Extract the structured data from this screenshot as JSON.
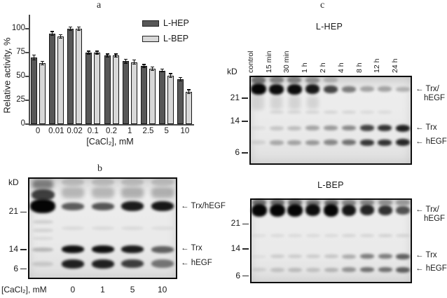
{
  "figure": {
    "panel_a_label": "a",
    "panel_b_label": "b",
    "panel_c_label": "c"
  },
  "chart_data": {
    "type": "bar",
    "title": "",
    "categories": [
      "0",
      "0.01",
      "0.02",
      "0.1",
      "0.2",
      "1",
      "2.5",
      "5",
      "10"
    ],
    "series": [
      {
        "name": "L-HEP",
        "color": "#575757",
        "values": [
          70,
          95,
          100,
          75,
          72,
          66,
          61,
          56,
          47
        ],
        "errors": [
          2.5,
          2,
          2,
          1.5,
          1.5,
          2,
          1.5,
          1.5,
          2
        ]
      },
      {
        "name": "L-BEP",
        "color": "#d8d8d8",
        "values": [
          64,
          92,
          100,
          75,
          72,
          65,
          58,
          51,
          34
        ],
        "errors": [
          2,
          2,
          2,
          1.5,
          1.5,
          2,
          2,
          2,
          2
        ]
      }
    ],
    "xlabel": "[CaCl₂], mM",
    "ylabel": "Relative activity, %",
    "yticks": [
      0,
      25,
      50,
      75,
      100
    ],
    "ylim": [
      0,
      112
    ],
    "grid": false,
    "legend_position": "top-right"
  },
  "gel_b": {
    "kd_label": "kD",
    "bottom_label": "[CaCl₂], mM",
    "lane_labels": [
      "",
      "0",
      "1",
      "5",
      "10"
    ],
    "markers": [
      {
        "text": "21",
        "f": 0.34
      },
      {
        "text": "14",
        "f": 0.71
      },
      {
        "text": "6",
        "f": 0.9
      }
    ],
    "arrows": [
      {
        "label": "Trx/hEGF",
        "f": 0.29
      },
      {
        "label": "Trx",
        "f": 0.705
      },
      {
        "label": "hEGF",
        "f": 0.85
      }
    ],
    "lanes": [
      [
        [
          0.28,
          1.0,
          20,
          1.12
        ],
        [
          0.17,
          0.75,
          16,
          1.02
        ],
        [
          0.07,
          0.45,
          14,
          0.95
        ],
        [
          0.44,
          0.12,
          5,
          0.9
        ],
        [
          0.52,
          0.1,
          5,
          0.9
        ],
        [
          0.6,
          0.08,
          4,
          0.9
        ],
        [
          0.71,
          0.22,
          6,
          0.95
        ],
        [
          0.85,
          0.12,
          7,
          0.95
        ]
      ],
      [
        [
          0.285,
          0.62,
          11,
          1
        ],
        [
          0.15,
          0.22,
          16,
          1
        ],
        [
          0.05,
          0.15,
          10,
          1
        ],
        [
          0.5,
          0.07,
          5,
          1
        ],
        [
          0.71,
          0.95,
          11,
          1
        ],
        [
          0.85,
          0.88,
          13,
          1
        ]
      ],
      [
        [
          0.285,
          0.65,
          11,
          1
        ],
        [
          0.15,
          0.22,
          16,
          1
        ],
        [
          0.05,
          0.15,
          10,
          1
        ],
        [
          0.5,
          0.07,
          5,
          1
        ],
        [
          0.71,
          0.95,
          11,
          1
        ],
        [
          0.85,
          0.88,
          13,
          1
        ]
      ],
      [
        [
          0.285,
          0.9,
          14,
          1
        ],
        [
          0.15,
          0.25,
          16,
          1
        ],
        [
          0.05,
          0.15,
          10,
          1
        ],
        [
          0.5,
          0.07,
          5,
          1
        ],
        [
          0.71,
          0.9,
          11,
          1
        ],
        [
          0.85,
          0.75,
          12,
          1
        ]
      ],
      [
        [
          0.285,
          0.92,
          14,
          1
        ],
        [
          0.15,
          0.25,
          16,
          1
        ],
        [
          0.05,
          0.15,
          10,
          1
        ],
        [
          0.5,
          0.06,
          5,
          1
        ],
        [
          0.71,
          0.6,
          10,
          1
        ],
        [
          0.85,
          0.5,
          12,
          1
        ]
      ]
    ]
  },
  "gel_hep": {
    "title": "L-HEP",
    "kd_label": "kD",
    "lane_labels": [
      "control",
      "15 min",
      "30 min",
      "1 h",
      "2 h",
      "4 h",
      "8 h",
      "12 h",
      "24 h"
    ],
    "markers": [
      {
        "text": "21",
        "f": 0.25
      },
      {
        "text": "14",
        "f": 0.51
      },
      {
        "text": "6",
        "f": 0.865
      }
    ],
    "arrows": [
      {
        "label": "Trx/",
        "label2": "hEGF",
        "f": 0.155
      },
      {
        "label": "Trx",
        "f": 0.59
      },
      {
        "label": "hEGF",
        "f": 0.745
      }
    ],
    "lanes": [
      [
        [
          0.15,
          1.0,
          16,
          1.08
        ],
        [
          0.05,
          0.5,
          11,
          1
        ],
        [
          0.3,
          0.1,
          22,
          0.85
        ],
        [
          0.59,
          0.06,
          5,
          1
        ],
        [
          0.75,
          0.1,
          6,
          1
        ]
      ],
      [
        [
          0.15,
          0.97,
          15,
          1.05
        ],
        [
          0.05,
          0.42,
          10,
          1
        ],
        [
          0.3,
          0.1,
          20,
          0.85
        ],
        [
          0.41,
          0.1,
          4,
          1
        ],
        [
          0.59,
          0.16,
          6,
          1
        ],
        [
          0.75,
          0.28,
          7,
          1
        ]
      ],
      [
        [
          0.15,
          0.97,
          15,
          1.05
        ],
        [
          0.05,
          0.42,
          10,
          1
        ],
        [
          0.3,
          0.1,
          20,
          0.85
        ],
        [
          0.41,
          0.1,
          4,
          1
        ],
        [
          0.59,
          0.2,
          6,
          1
        ],
        [
          0.75,
          0.3,
          7,
          1
        ]
      ],
      [
        [
          0.15,
          0.92,
          14,
          1
        ],
        [
          0.05,
          0.35,
          9,
          1
        ],
        [
          0.3,
          0.1,
          18,
          0.85
        ],
        [
          0.41,
          0.1,
          4,
          1
        ],
        [
          0.59,
          0.3,
          7,
          1
        ],
        [
          0.75,
          0.35,
          7,
          1
        ]
      ],
      [
        [
          0.15,
          0.72,
          11,
          1
        ],
        [
          0.05,
          0.2,
          8,
          1
        ],
        [
          0.41,
          0.1,
          4,
          1
        ],
        [
          0.59,
          0.35,
          7,
          1
        ],
        [
          0.75,
          0.42,
          8,
          1
        ]
      ],
      [
        [
          0.15,
          0.48,
          9,
          1
        ],
        [
          0.41,
          0.1,
          4,
          1
        ],
        [
          0.59,
          0.42,
          7,
          1
        ],
        [
          0.75,
          0.52,
          8,
          1
        ]
      ],
      [
        [
          0.15,
          0.3,
          8,
          1
        ],
        [
          0.41,
          0.08,
          4,
          1
        ],
        [
          0.59,
          0.72,
          9,
          1
        ],
        [
          0.75,
          0.78,
          9,
          1
        ]
      ],
      [
        [
          0.15,
          0.3,
          8,
          1
        ],
        [
          0.41,
          0.08,
          4,
          1
        ],
        [
          0.59,
          0.8,
          9,
          1
        ],
        [
          0.75,
          0.8,
          9,
          1
        ]
      ],
      [
        [
          0.15,
          0.24,
          7,
          1
        ],
        [
          0.59,
          0.88,
          10,
          1
        ],
        [
          0.75,
          0.85,
          10,
          1
        ]
      ]
    ]
  },
  "gel_bep": {
    "title": "L-BEP",
    "markers": [
      {
        "text": "21",
        "f": 0.3
      },
      {
        "text": "14",
        "f": 0.595
      },
      {
        "text": "6",
        "f": 0.915
      }
    ],
    "arrows": [
      {
        "label": "Trx/",
        "label2": "hEGF",
        "f": 0.14
      },
      {
        "label": "Trx",
        "f": 0.675
      },
      {
        "label": "hEGF",
        "f": 0.835
      }
    ],
    "lanes": [
      [
        [
          0.14,
          1.0,
          18,
          1.1
        ],
        [
          0.05,
          0.5,
          10,
          1
        ],
        [
          0.44,
          0.06,
          4,
          1
        ],
        [
          0.685,
          0.05,
          4,
          1
        ],
        [
          0.84,
          0.1,
          5,
          1
        ]
      ],
      [
        [
          0.14,
          1.0,
          18,
          1.1
        ],
        [
          0.05,
          0.5,
          10,
          1
        ],
        [
          0.44,
          0.08,
          4,
          1
        ],
        [
          0.685,
          0.13,
          5,
          1
        ],
        [
          0.84,
          0.16,
          6,
          1
        ]
      ],
      [
        [
          0.14,
          1.0,
          18,
          1.1
        ],
        [
          0.05,
          0.5,
          10,
          1
        ],
        [
          0.44,
          0.08,
          4,
          1
        ],
        [
          0.685,
          0.13,
          5,
          1
        ],
        [
          0.84,
          0.19,
          6,
          1
        ]
      ],
      [
        [
          0.14,
          0.96,
          17,
          1.05
        ],
        [
          0.05,
          0.45,
          9,
          1
        ],
        [
          0.44,
          0.08,
          4,
          1
        ],
        [
          0.685,
          0.13,
          5,
          1
        ],
        [
          0.84,
          0.16,
          6,
          1
        ]
      ],
      [
        [
          0.14,
          1.0,
          18,
          1.05
        ],
        [
          0.05,
          0.5,
          9,
          1
        ],
        [
          0.44,
          0.08,
          4,
          1
        ],
        [
          0.685,
          0.16,
          5,
          1
        ],
        [
          0.84,
          0.22,
          6,
          1
        ]
      ],
      [
        [
          0.14,
          0.92,
          16,
          1
        ],
        [
          0.05,
          0.4,
          9,
          1
        ],
        [
          0.44,
          0.1,
          4,
          1
        ],
        [
          0.685,
          0.27,
          6,
          1
        ],
        [
          0.84,
          0.37,
          7,
          1
        ]
      ],
      [
        [
          0.14,
          0.86,
          15,
          1
        ],
        [
          0.05,
          0.4,
          8,
          1
        ],
        [
          0.44,
          0.1,
          4,
          1
        ],
        [
          0.685,
          0.47,
          7,
          1
        ],
        [
          0.84,
          0.52,
          7,
          1
        ]
      ],
      [
        [
          0.14,
          0.8,
          14,
          1
        ],
        [
          0.05,
          0.35,
          8,
          1
        ],
        [
          0.44,
          0.12,
          4,
          1
        ],
        [
          0.685,
          0.47,
          7,
          1
        ],
        [
          0.84,
          0.52,
          7,
          1
        ]
      ],
      [
        [
          0.14,
          0.66,
          12,
          1
        ],
        [
          0.05,
          0.3,
          8,
          1
        ],
        [
          0.44,
          0.1,
          4,
          1
        ],
        [
          0.685,
          0.6,
          8,
          1
        ],
        [
          0.84,
          0.6,
          8,
          1
        ]
      ]
    ]
  }
}
